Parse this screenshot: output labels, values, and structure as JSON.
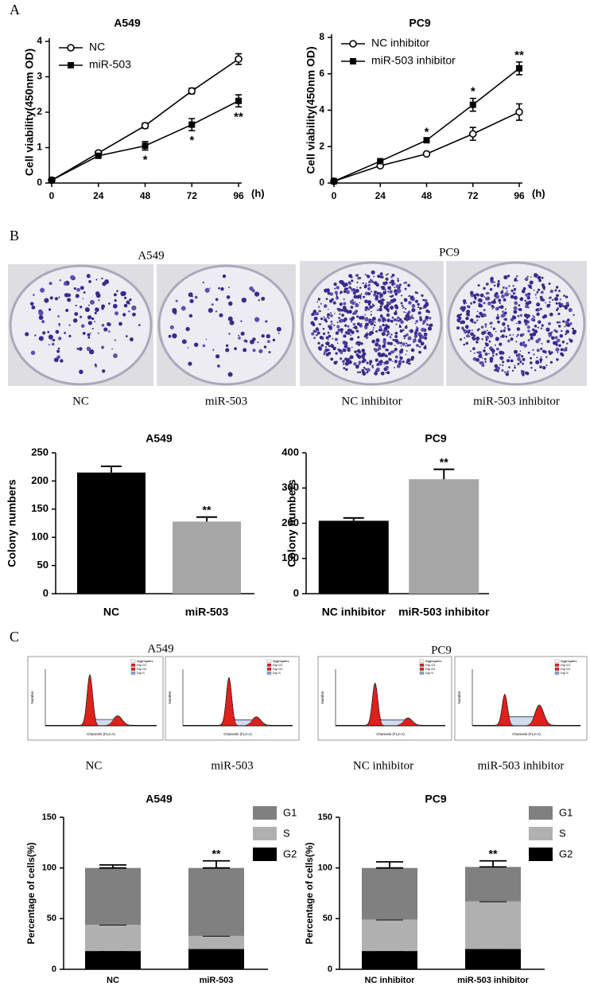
{
  "panel_labels": [
    "A",
    "B",
    "C"
  ],
  "colony_assay": {
    "groups": [
      {
        "title": "A549",
        "images": [
          "NC",
          "miR-503"
        ]
      },
      {
        "title": "PC9",
        "images": [
          "NC inhibitor",
          "miR-503 inhibitor"
        ]
      }
    ]
  },
  "cell_cycle_assay": {
    "groups": [
      {
        "title": "A549",
        "images": [
          "NC",
          "miR-503"
        ]
      },
      {
        "title": "PC9",
        "images": [
          "NC inhibitor",
          "miR-503 inhibitor"
        ]
      }
    ],
    "plot_text": {
      "legend": [
        "Aggregates",
        "Dip G1",
        "Dip G2",
        "Dip S"
      ],
      "ylabel": "Number",
      "xlabel": "Channels (FL2-A)"
    }
  },
  "chart_data": [
    {
      "type": "line",
      "title": "A549",
      "xlabel": "(h)",
      "ylabel": "Cell viability(450nm OD)",
      "x": [
        0,
        24,
        48,
        72,
        96
      ],
      "xlim": [
        0,
        96
      ],
      "xticks": [
        0,
        24,
        48,
        72,
        96
      ],
      "ylim": [
        0,
        4
      ],
      "yticks": [
        0,
        1,
        2,
        3,
        4
      ],
      "legend": "upper left",
      "series": [
        {
          "name": "NC",
          "color": "#000000",
          "marker": "circle",
          "values": [
            0.08,
            0.85,
            1.62,
            2.6,
            3.5
          ],
          "errors": [
            0.04,
            0.05,
            0.07,
            0.08,
            0.15
          ]
        },
        {
          "name": "miR-503",
          "color": "#000000",
          "marker": "square",
          "values": [
            0.08,
            0.77,
            1.05,
            1.65,
            2.32
          ],
          "errors": [
            0.03,
            0.04,
            0.12,
            0.17,
            0.17
          ]
        }
      ],
      "annotation_placement": "below",
      "annotations": [
        {
          "x": 48,
          "text": "*"
        },
        {
          "x": 72,
          "text": "*"
        },
        {
          "x": 96,
          "text": "**"
        }
      ]
    },
    {
      "type": "line",
      "title": "PC9",
      "xlabel": "(h)",
      "ylabel": "Cell viability(450nm OD)",
      "x": [
        0,
        24,
        48,
        72,
        96
      ],
      "xlim": [
        0,
        96
      ],
      "xticks": [
        0,
        24,
        48,
        72,
        96
      ],
      "ylim": [
        0,
        8
      ],
      "yticks": [
        0,
        2,
        4,
        6,
        8
      ],
      "legend": "upper left",
      "series": [
        {
          "name": "NC inhibitor",
          "color": "#000000",
          "marker": "circle",
          "values": [
            0.1,
            0.95,
            1.6,
            2.7,
            3.9
          ],
          "errors": [
            0.05,
            0.05,
            0.07,
            0.35,
            0.45
          ]
        },
        {
          "name": "miR-503 inhibitor",
          "color": "#000000",
          "marker": "square",
          "values": [
            0.1,
            1.2,
            2.35,
            4.3,
            6.3
          ],
          "errors": [
            0.05,
            0.05,
            0.08,
            0.35,
            0.35
          ]
        }
      ],
      "annotation_placement": "above",
      "annotations": [
        {
          "x": 48,
          "text": "*"
        },
        {
          "x": 72,
          "text": "*"
        },
        {
          "x": 96,
          "text": "**"
        }
      ]
    },
    {
      "type": "bar",
      "title": "A549",
      "ylabel": "Colony numbers",
      "categories": [
        "NC",
        "miR-503"
      ],
      "values": [
        215,
        128
      ],
      "errors": [
        11,
        8
      ],
      "colors": [
        "#000000",
        "#a6a6a6"
      ],
      "ylim": [
        0,
        250
      ],
      "yticks": [
        0,
        50,
        100,
        150,
        200,
        250
      ],
      "annotations": [
        {
          "category": "miR-503",
          "text": "**"
        }
      ]
    },
    {
      "type": "bar",
      "title": "PC9",
      "ylabel": "Colony numbers",
      "categories": [
        "NC inhibitor",
        "miR-503 inhibitor"
      ],
      "values": [
        207,
        325
      ],
      "errors": [
        8,
        28
      ],
      "colors": [
        "#000000",
        "#a6a6a6"
      ],
      "ylim": [
        0,
        400
      ],
      "yticks": [
        0,
        100,
        200,
        300,
        400
      ],
      "annotations": [
        {
          "category": "miR-503 inhibitor",
          "text": "**"
        }
      ]
    },
    {
      "type": "stacked_bar",
      "title": "A549",
      "ylabel": "Percentage of cells(%)",
      "categories": [
        "NC",
        "miR-503"
      ],
      "ylim": [
        0,
        150
      ],
      "yticks": [
        0,
        50,
        100,
        150
      ],
      "legend": "upper right",
      "series": [
        {
          "name": "G1",
          "color": "#808080",
          "values": [
            56,
            67
          ],
          "errors": [
            3,
            7
          ]
        },
        {
          "name": "S",
          "color": "#b0b0b0",
          "values": [
            26,
            13
          ],
          "errors": [
            1,
            2
          ]
        },
        {
          "name": "G2",
          "color": "#000000",
          "values": [
            18,
            20
          ],
          "errors": [
            2,
            5
          ]
        }
      ],
      "annotations": [
        {
          "category": "miR-503",
          "text": "**"
        }
      ]
    },
    {
      "type": "stacked_bar",
      "title": "PC9",
      "ylabel": "Percentage of cells(%)",
      "categories": [
        "NC inhibitor",
        "miR-503 inhibitor"
      ],
      "ylim": [
        0,
        150
      ],
      "yticks": [
        0,
        50,
        100,
        150
      ],
      "legend": "upper right",
      "series": [
        {
          "name": "G1",
          "color": "#808080",
          "values": [
            51,
            34
          ],
          "errors": [
            6,
            6
          ]
        },
        {
          "name": "S",
          "color": "#b0b0b0",
          "values": [
            31,
            47
          ],
          "errors": [
            2,
            1
          ]
        },
        {
          "name": "G2",
          "color": "#000000",
          "values": [
            18,
            20
          ],
          "errors": [
            3,
            5
          ]
        }
      ],
      "annotations": [
        {
          "category": "miR-503 inhibitor",
          "text": "**"
        }
      ]
    }
  ]
}
